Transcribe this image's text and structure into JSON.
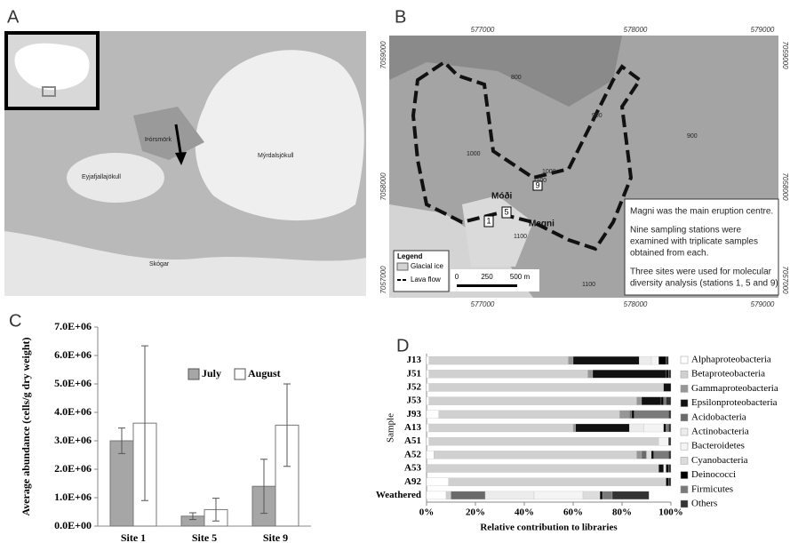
{
  "panels": {
    "A": {
      "label": "A",
      "places": [
        "Eyjafjallajökull",
        "Mýrdalsjökull",
        "Þórsmörk",
        "Skógar"
      ]
    },
    "B": {
      "label": "B",
      "x_coords": [
        "577000",
        "578000",
        "579000"
      ],
      "y_coords": [
        "7059000",
        "7058000",
        "7057000"
      ],
      "contours": [
        "800",
        "900",
        "900",
        "1000",
        "1000",
        "1100",
        "1100",
        "1100"
      ],
      "places": [
        "Móði",
        "Magni"
      ],
      "stations": [
        "1",
        "5",
        "9"
      ],
      "legend": {
        "title": "Legend",
        "items": [
          "Glacial ice",
          "Lava flow"
        ]
      },
      "scale": [
        "0",
        "250",
        "500 m"
      ],
      "note": [
        "Magni was the main eruption centre.",
        "Nine sampling stations were",
        "examined with triplicate samples",
        "obtained from each.",
        "Three sites were used for molecular",
        "diversity analysis (stations 1, 5 and 9)"
      ]
    }
  },
  "chart_data": [
    {
      "type": "bar",
      "panel_label": "C",
      "ylabel": "Average abundance (cells/g dry weight)",
      "categories": [
        "Site 1",
        "Site 5",
        "Site 9"
      ],
      "series": [
        {
          "name": "July",
          "color": "#a6a6a6",
          "values": [
            3000000,
            350000,
            1400000
          ],
          "errors": [
            450000,
            120000,
            950000
          ]
        },
        {
          "name": "August",
          "color": "#ffffff",
          "values": [
            3620000,
            580000,
            3550000
          ],
          "errors": [
            2720000,
            400000,
            1450000
          ]
        }
      ],
      "ylim": [
        0,
        7000000
      ],
      "yticks": [
        {
          "value": 0,
          "label": "0.0E+00"
        },
        {
          "value": 1000000,
          "label": "1.0E+06"
        },
        {
          "value": 2000000,
          "label": "2.0E+06"
        },
        {
          "value": 3000000,
          "label": "3.0E+06"
        },
        {
          "value": 4000000,
          "label": "4.0E+06"
        },
        {
          "value": 5000000,
          "label": "5.0E+06"
        },
        {
          "value": 6000000,
          "label": "6.0E+06"
        },
        {
          "value": 7000000,
          "label": "7.0E+06"
        }
      ]
    },
    {
      "type": "hbar",
      "panel_label": "D",
      "xlabel": "Relative contribution to libraries",
      "ylabel": "Sample",
      "categories": [
        "J13",
        "J51",
        "J52",
        "J53",
        "J93",
        "A13",
        "A51",
        "A52",
        "A53",
        "A92",
        "Weathered"
      ],
      "series": [
        {
          "name": "Alphaproteobacteria",
          "color": "#ffffff",
          "values": [
            1,
            1,
            1,
            1,
            5,
            1,
            1,
            3,
            0,
            9,
            8
          ]
        },
        {
          "name": "Betaproteobacteria",
          "color": "#d0d0d0",
          "values": [
            57,
            65,
            96,
            85,
            74,
            59,
            94,
            83,
            95,
            89,
            2
          ]
        },
        {
          "name": "Gammaproteobacteria",
          "color": "#969696",
          "values": [
            2,
            2,
            0,
            2,
            4,
            1,
            0,
            2,
            0,
            0,
            0
          ]
        },
        {
          "name": "Epsilonproteobacteria",
          "color": "#111111",
          "values": [
            27,
            30,
            3,
            8,
            0,
            22,
            0,
            0,
            2,
            0,
            0
          ]
        },
        {
          "name": "Acidobacteria",
          "color": "#6a6a6a",
          "values": [
            0,
            0,
            0,
            0,
            1,
            0,
            0,
            2,
            0,
            0,
            14
          ]
        },
        {
          "name": "Actinobacteria",
          "color": "#ececec",
          "values": [
            5,
            0,
            0,
            0,
            0,
            6,
            0,
            0,
            1,
            0,
            20
          ]
        },
        {
          "name": "Bacteroidetes",
          "color": "#f4f4f4",
          "values": [
            3,
            0,
            0,
            0,
            0,
            8,
            4,
            0,
            0,
            0,
            20
          ]
        },
        {
          "name": "Cyanobacteria",
          "color": "#dcdcdc",
          "values": [
            0,
            0,
            0,
            0,
            0,
            0,
            0,
            2,
            0,
            0,
            7
          ]
        },
        {
          "name": "Deinococci",
          "color": "#000000",
          "values": [
            3,
            1,
            0,
            1,
            1,
            1,
            0,
            1,
            1,
            1,
            1
          ]
        },
        {
          "name": "Firmicutes",
          "color": "#7a7a7a",
          "values": [
            0,
            0,
            0,
            1,
            14,
            1,
            0,
            6,
            0,
            0,
            4
          ]
        },
        {
          "name": "Others",
          "color": "#333333",
          "values": [
            1,
            1,
            0,
            2,
            1,
            1,
            1,
            1,
            1,
            1,
            15
          ]
        }
      ],
      "xlim": [
        0,
        100
      ],
      "xticks": [
        {
          "value": 0,
          "label": "0%"
        },
        {
          "value": 20,
          "label": "20%"
        },
        {
          "value": 40,
          "label": "40%"
        },
        {
          "value": 60,
          "label": "60%"
        },
        {
          "value": 80,
          "label": "80%"
        },
        {
          "value": 100,
          "label": "100%"
        }
      ]
    }
  ]
}
